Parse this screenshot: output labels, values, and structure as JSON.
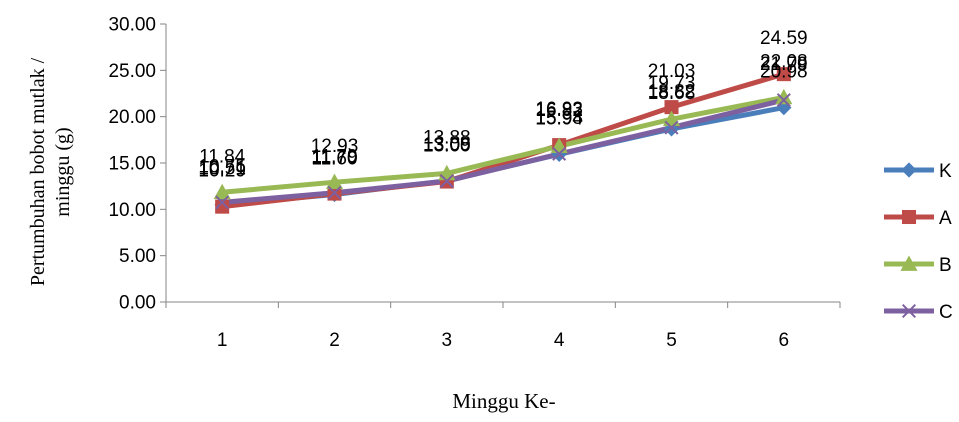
{
  "chart_data": {
    "type": "line",
    "categories": [
      "1",
      "2",
      "3",
      "4",
      "5",
      "6"
    ],
    "xlabel": "Minggu Ke-",
    "ylabel_lines": [
      "Pertumbuhan bobot mutlak /",
      "minggu (g)"
    ],
    "ylim": [
      0,
      30
    ],
    "y_ticks": [
      "0.00",
      "5.00",
      "10.00",
      "15.00",
      "20.00",
      "25.00",
      "30.00"
    ],
    "grid": false,
    "legend_position": "right",
    "series": [
      {
        "name": "K",
        "color": "#4a7ebb",
        "marker": "diamond",
        "values": [
          10.51,
          11.6,
          13.09,
          15.94,
          18.68,
          20.98
        ],
        "labels": [
          "10.51",
          "11.60",
          "13.09",
          "15.94",
          "18.68",
          "20.98"
        ]
      },
      {
        "name": "A",
        "color": "#be4b48",
        "marker": "square",
        "values": [
          10.29,
          11.7,
          13.0,
          16.93,
          21.03,
          24.59
        ],
        "labels": [
          "10.29",
          "11.70",
          "13.00",
          "16.93",
          "21.03",
          "24.59"
        ]
      },
      {
        "name": "B",
        "color": "#98b954",
        "marker": "triangle",
        "values": [
          11.84,
          12.93,
          13.88,
          16.82,
          19.73,
          22.08
        ],
        "labels": [
          "11.84",
          "12.93",
          "13.88",
          "16.82",
          "19.73",
          "22.08"
        ]
      },
      {
        "name": "C",
        "color": "#7d60a0",
        "marker": "x",
        "values": [
          10.75,
          11.79,
          13.05,
          15.98,
          18.82,
          21.79
        ],
        "labels": [
          "10.75",
          "11.79",
          "13.05",
          "15.98",
          "18.82",
          "21.79"
        ]
      }
    ]
  }
}
